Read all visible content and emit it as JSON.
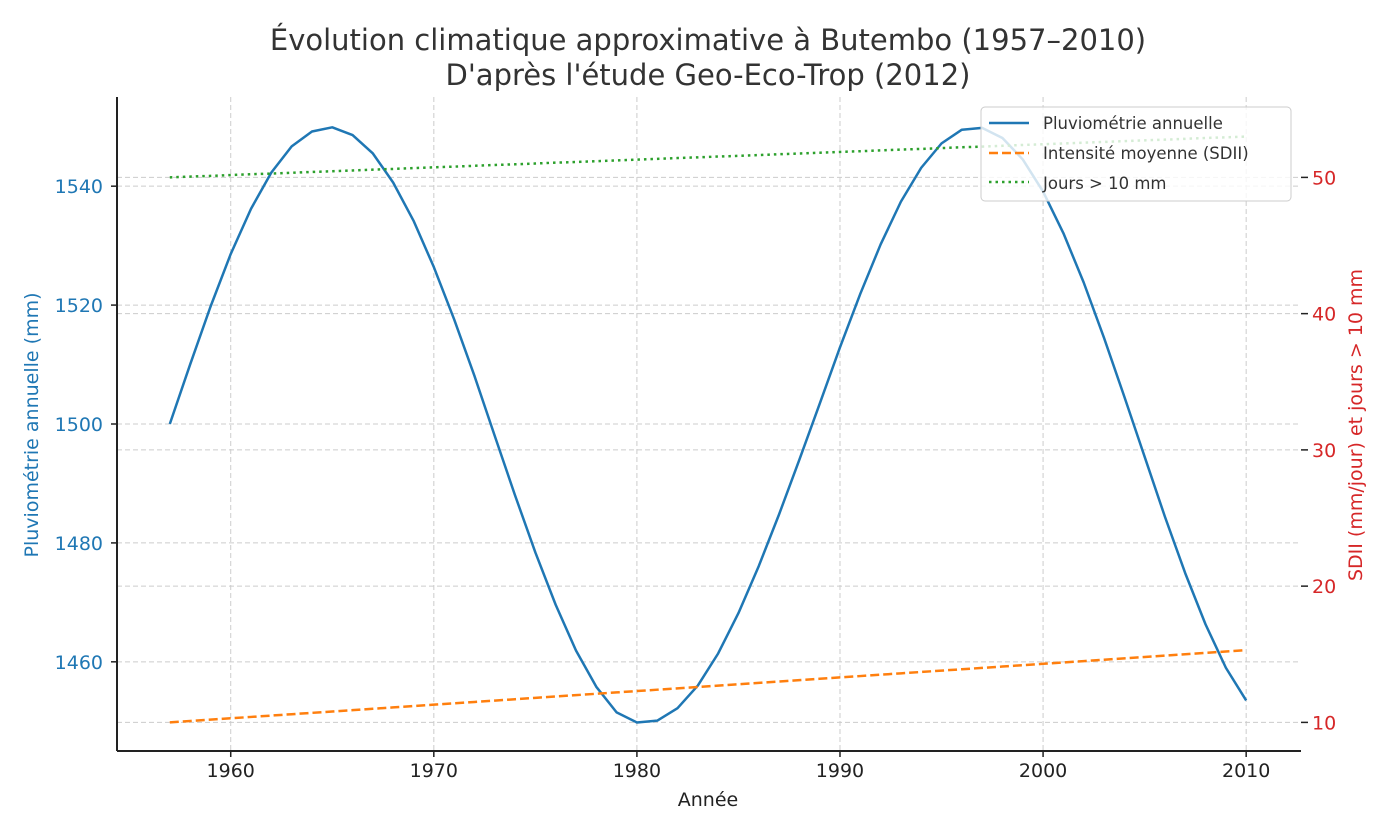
{
  "chart_data": {
    "type": "line",
    "title": "Évolution climatique approximative à Butembo (1957–2010)",
    "subtitle": "D'après l'étude Geo-Eco-Trop (2012)",
    "xlabel": "Année",
    "ylabel_left": "Pluviométrie annuelle (mm)",
    "ylabel_right": "SDII (mm/jour) et jours > 10 mm",
    "xlim": [
      1954.4,
      2012.7
    ],
    "ylim_left": [
      1445,
      1555
    ],
    "ylim_right": [
      7.9,
      55.9
    ],
    "x_ticks": [
      1960,
      1970,
      1980,
      1990,
      2000,
      2010
    ],
    "y_ticks_left": [
      1460,
      1480,
      1500,
      1520,
      1540
    ],
    "y_ticks_right": [
      10,
      20,
      30,
      40,
      50
    ],
    "grid": true,
    "legend_position": "top-right",
    "x": [
      1957,
      1958,
      1959,
      1960,
      1961,
      1962,
      1963,
      1964,
      1965,
      1966,
      1967,
      1968,
      1969,
      1970,
      1971,
      1972,
      1973,
      1974,
      1975,
      1976,
      1977,
      1978,
      1979,
      1980,
      1981,
      1982,
      1983,
      1984,
      1985,
      1986,
      1987,
      1988,
      1989,
      1990,
      1991,
      1992,
      1993,
      1994,
      1995,
      1996,
      1997,
      1998,
      1999,
      2000,
      2001,
      2002,
      2003,
      2004,
      2005,
      2006,
      2007,
      2008,
      2009,
      2010
    ],
    "series": [
      {
        "name": "Pluviométrie annuelle",
        "axis": "left",
        "color": "#1f77b4",
        "style": "solid",
        "values": [
          1500.0,
          1510.0,
          1519.7,
          1528.6,
          1536.2,
          1542.3,
          1546.7,
          1549.2,
          1549.9,
          1548.6,
          1545.5,
          1540.6,
          1534.2,
          1526.4,
          1517.6,
          1508.1,
          1498.0,
          1488.0,
          1478.4,
          1469.6,
          1461.9,
          1455.8,
          1451.5,
          1449.8,
          1450.1,
          1452.2,
          1456.0,
          1461.4,
          1468.2,
          1476.1,
          1484.8,
          1494.0,
          1503.4,
          1512.9,
          1521.9,
          1530.2,
          1537.4,
          1543.1,
          1547.2,
          1549.5,
          1549.8,
          1548.1,
          1544.5,
          1539.1,
          1532.1,
          1523.8,
          1514.5,
          1504.6,
          1494.5,
          1484.4,
          1474.9,
          1466.3,
          1459.0,
          1453.5
        ]
      },
      {
        "name": "Intensité moyenne (SDII)",
        "axis": "right",
        "color": "#ff7f0e",
        "style": "dashed",
        "values": [
          10.0,
          10.1,
          10.2,
          10.3,
          10.4,
          10.5,
          10.6,
          10.7,
          10.8,
          10.9,
          11.0,
          11.1,
          11.2,
          11.3,
          11.4,
          11.5,
          11.6,
          11.7,
          11.8,
          11.9,
          12.0,
          12.1,
          12.2,
          12.3,
          12.4,
          12.5,
          12.6,
          12.7,
          12.8,
          12.9,
          13.0,
          13.1,
          13.2,
          13.3,
          13.4,
          13.5,
          13.6,
          13.7,
          13.8,
          13.9,
          14.0,
          14.1,
          14.2,
          14.3,
          14.4,
          14.5,
          14.6,
          14.7,
          14.8,
          14.9,
          15.0,
          15.1,
          15.2,
          15.3
        ]
      },
      {
        "name": "Jours > 10 mm",
        "axis": "right",
        "color": "#2ca02c",
        "style": "dotted",
        "values": [
          50.0,
          50.06,
          50.11,
          50.17,
          50.23,
          50.28,
          50.34,
          50.4,
          50.45,
          50.51,
          50.57,
          50.62,
          50.68,
          50.74,
          50.79,
          50.85,
          50.91,
          50.96,
          51.02,
          51.08,
          51.13,
          51.19,
          51.25,
          51.3,
          51.36,
          51.42,
          51.47,
          51.53,
          51.58,
          51.64,
          51.7,
          51.75,
          51.81,
          51.87,
          51.92,
          51.98,
          52.04,
          52.09,
          52.15,
          52.21,
          52.26,
          52.32,
          52.38,
          52.43,
          52.49,
          52.55,
          52.6,
          52.66,
          52.72,
          52.77,
          52.83,
          52.89,
          52.94,
          53.0
        ]
      }
    ]
  }
}
